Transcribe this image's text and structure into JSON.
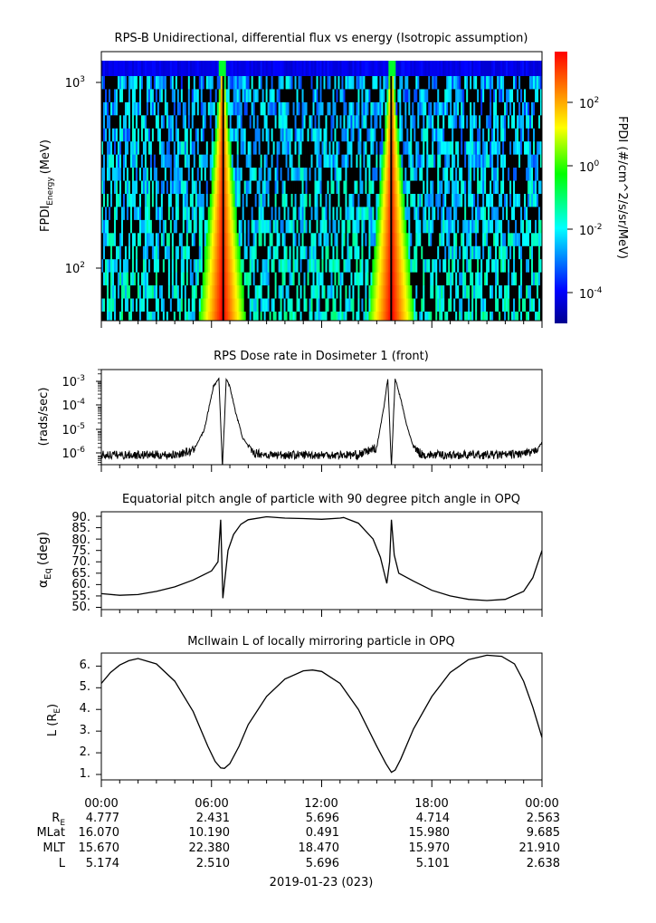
{
  "panels": [
    {
      "title": "RPS-B  Unidirectional, differential flux vs energy (Isotropic assumption)",
      "ylabel_main": "FPDI",
      "ylabel_sub": "Energy",
      "ylabel_unit": "(MeV)",
      "yticks": [
        "10",
        "10"
      ],
      "yticks_exp": [
        "3",
        "2"
      ],
      "colorbar": {
        "label": "FPDI (#/cm^2/s/sr/MeV)",
        "ticks": [
          "10",
          "10",
          "10",
          "10"
        ],
        "ticks_exp": [
          "2",
          "0",
          "-2",
          "-4"
        ]
      }
    },
    {
      "title": "RPS  Dose rate in Dosimeter 1 (front)",
      "ylabel": "(rads/sec)",
      "yticks": [
        "10",
        "10",
        "10",
        "10"
      ],
      "yticks_exp": [
        "-3",
        "-4",
        "-5",
        "-6"
      ]
    },
    {
      "title": "Equatorial pitch angle of particle with 90 degree pitch angle in OPQ",
      "ylabel_main": "α",
      "ylabel_sub": "Eq",
      "ylabel_unit": "(deg)",
      "yticks": [
        "90.",
        "85.",
        "80.",
        "75.",
        "70.",
        "65.",
        "60.",
        "55.",
        "50."
      ]
    },
    {
      "title": "McIlwain L of locally mirroring particle in OPQ",
      "ylabel_main": "L (R",
      "ylabel_sub": "E",
      "ylabel_end": ")",
      "yticks": [
        "6.",
        "5.",
        "4.",
        "3.",
        "2.",
        "1."
      ]
    }
  ],
  "xaxis": {
    "ticks": [
      "00:00",
      "06:00",
      "12:00",
      "18:00",
      "00:00"
    ],
    "date_label": "2019-01-23 (023)"
  },
  "ephemeris": {
    "rows": [
      {
        "label": "R",
        "label_sub": "E",
        "values": [
          "4.777",
          "2.431",
          "5.696",
          "4.714",
          "2.563"
        ]
      },
      {
        "label": "MLat",
        "label_sub": "",
        "values": [
          "16.070",
          "10.190",
          "0.491",
          "15.980",
          "9.685"
        ]
      },
      {
        "label": "MLT",
        "label_sub": "",
        "values": [
          "15.670",
          "22.380",
          "18.470",
          "15.970",
          "21.910"
        ]
      },
      {
        "label": "L",
        "label_sub": "",
        "values": [
          "5.174",
          "2.510",
          "5.696",
          "5.101",
          "2.638"
        ]
      }
    ]
  },
  "chart_data": [
    {
      "type": "heatmap",
      "title": "RPS-B  Unidirectional, differential flux vs energy (Isotropic assumption)",
      "x_range": [
        "2019-01-23 00:00",
        "2019-01-24 00:00"
      ],
      "y_scale": "log",
      "ylim": [
        55,
        1400
      ],
      "y_unit": "MeV",
      "color_scale": "log",
      "color_range": [
        1e-05,
        3000
      ],
      "colormap": [
        "#00008f",
        "#0000ff",
        "#00ffff",
        "#00ff00",
        "#ffff00",
        "#ff7f00",
        "#ff0000"
      ],
      "features": [
        {
          "type": "high_flux_band",
          "center_hour": 6.6,
          "peak_flux": 300
        },
        {
          "type": "high_flux_band",
          "center_hour": 15.8,
          "peak_flux": 300
        }
      ]
    },
    {
      "type": "line",
      "title": "RPS  Dose rate in Dosimeter 1 (front)",
      "ylabel": "(rads/sec)",
      "y_scale": "log",
      "ylim": [
        4e-07,
        0.003
      ],
      "x_unit": "hours since 2019-01-23 00:00",
      "x": [
        0,
        1,
        2,
        3,
        4,
        5,
        5.6,
        6.1,
        6.4,
        6.6,
        6.8,
        7.0,
        7.3,
        7.7,
        8.2,
        9,
        10,
        12,
        14,
        15.0,
        15.4,
        15.6,
        15.8,
        16.0,
        16.3,
        16.6,
        17.0,
        17.5,
        18,
        20,
        22,
        23.5,
        24
      ],
      "values": [
        1e-06,
        1e-06,
        1e-06,
        1e-06,
        1e-06,
        1.5e-06,
        1e-05,
        0.0006,
        0.0013,
        3e-07,
        0.0013,
        0.0006,
        6e-05,
        5e-06,
        1.3e-06,
        1e-06,
        1e-06,
        1e-06,
        1e-06,
        2e-06,
        0.0001,
        0.0013,
        3e-07,
        0.0013,
        0.0002,
        2e-05,
        2e-06,
        1e-06,
        1e-06,
        1e-06,
        1e-06,
        1.2e-06,
        3e-06
      ]
    },
    {
      "type": "line",
      "title": "Equatorial pitch angle of particle with 90 degree pitch angle in OPQ",
      "ylabel": "αEq (deg)",
      "ylim": [
        49,
        92
      ],
      "x_unit": "hours since 2019-01-23 00:00",
      "x": [
        0,
        1,
        2,
        3,
        4,
        5,
        6,
        6.35,
        6.5,
        6.62,
        6.75,
        6.9,
        7.2,
        7.6,
        8,
        9,
        10,
        11,
        12,
        13,
        13.2,
        14,
        14.8,
        15.2,
        15.55,
        15.7,
        15.8,
        15.95,
        16.2,
        17,
        18,
        19,
        20,
        21,
        22,
        23,
        23.5,
        24
      ],
      "values": [
        56,
        55.3,
        55.6,
        57,
        59,
        62,
        66,
        70,
        88.5,
        54,
        64,
        75,
        82,
        86.5,
        88.5,
        89.8,
        89.2,
        89,
        88.7,
        89.2,
        89.5,
        87,
        80,
        72,
        60.5,
        70,
        88.5,
        73,
        65,
        61.5,
        57.5,
        55,
        53.5,
        53,
        53.5,
        57,
        63,
        75
      ]
    },
    {
      "type": "line",
      "title": "McIlwain L of locally mirroring particle in OPQ",
      "ylabel": "L (RE)",
      "ylim": [
        0.75,
        6.6
      ],
      "x_unit": "hours since 2019-01-23 00:00",
      "x": [
        0,
        0.5,
        1,
        1.5,
        2,
        3,
        4,
        5,
        5.8,
        6.2,
        6.5,
        6.7,
        7.0,
        7.5,
        8,
        9,
        10,
        11,
        11.5,
        12,
        13,
        14,
        15,
        15.5,
        15.8,
        16.0,
        16.3,
        17,
        18,
        19,
        20,
        21,
        21.8,
        22.5,
        23,
        23.5,
        24
      ],
      "values": [
        5.2,
        5.7,
        6.05,
        6.25,
        6.35,
        6.1,
        5.3,
        3.9,
        2.3,
        1.6,
        1.3,
        1.28,
        1.5,
        2.3,
        3.3,
        4.6,
        5.4,
        5.78,
        5.82,
        5.75,
        5.2,
        4.0,
        2.3,
        1.5,
        1.1,
        1.2,
        1.7,
        3.1,
        4.6,
        5.7,
        6.3,
        6.5,
        6.45,
        6.1,
        5.3,
        4.1,
        2.7
      ]
    }
  ]
}
